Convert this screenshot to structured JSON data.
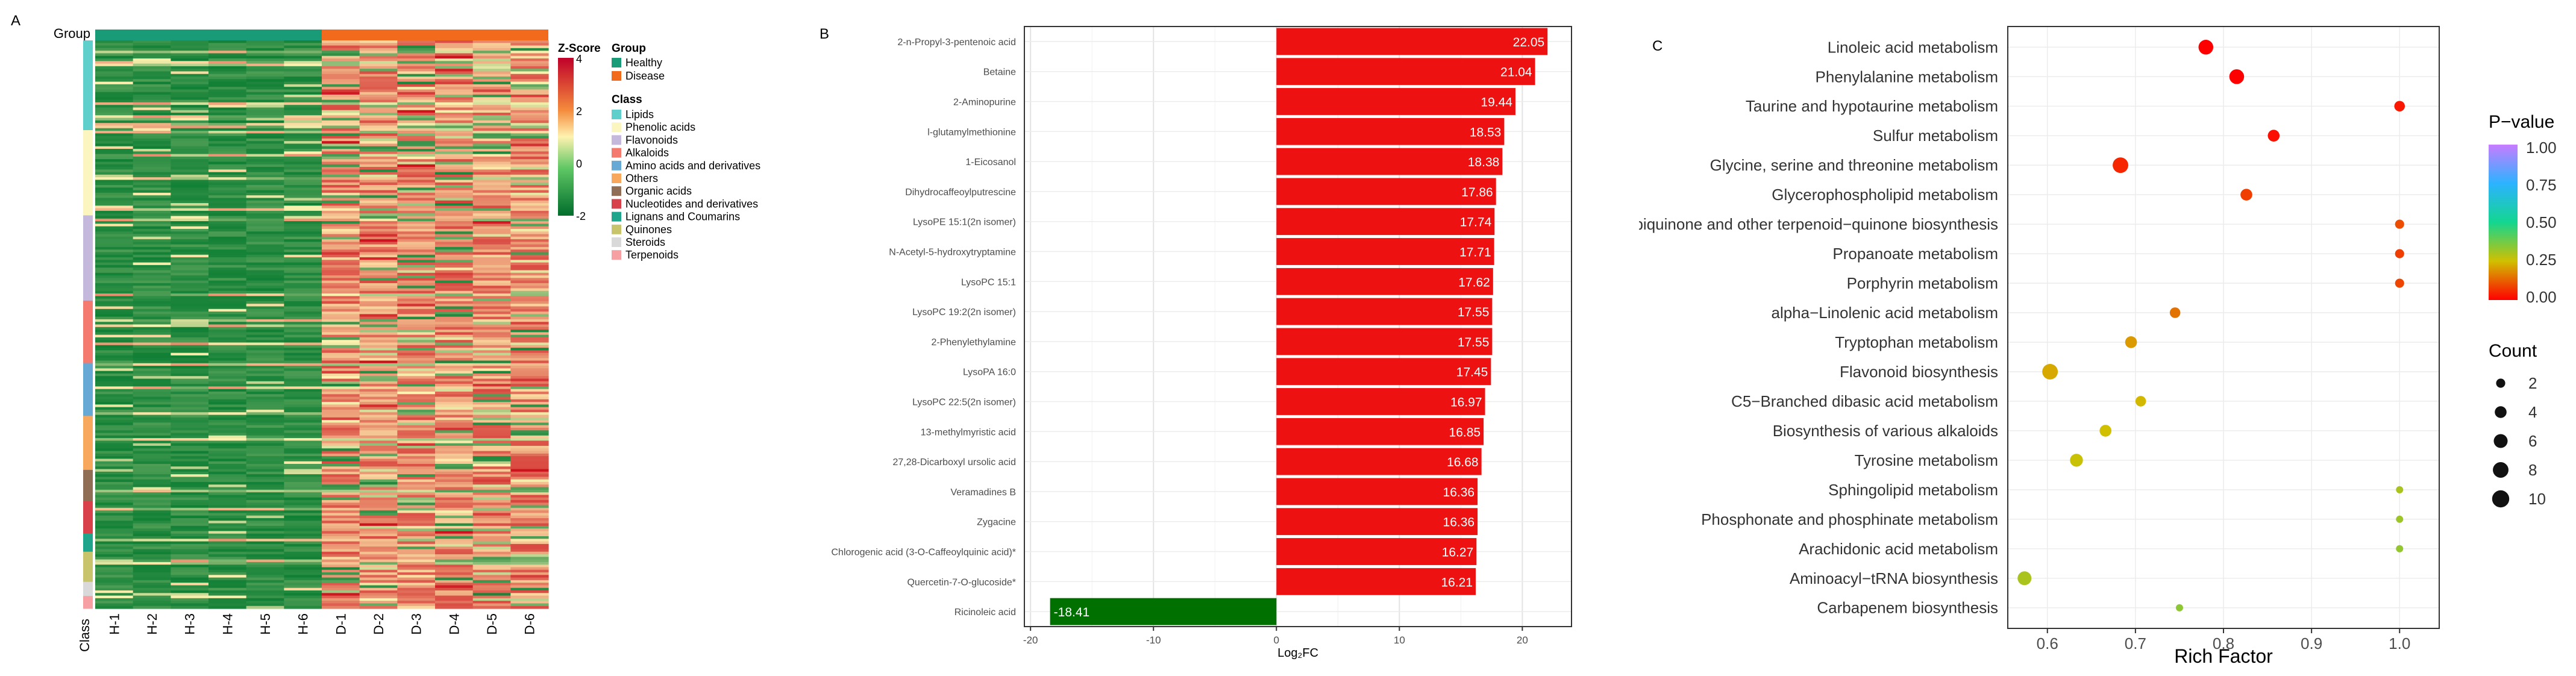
{
  "panel_labels": {
    "a": "A",
    "b": "B",
    "c": "C"
  },
  "colors": {
    "healthy": "#1a9b78",
    "disease": "#f26a1b",
    "bar_positive": "#ee1111",
    "bar_negative": "#007000",
    "heat_low": "#1aa34a",
    "heat_mid": "#fff2b0",
    "heat_high": "#d7191c"
  },
  "heatmap": {
    "group_row_label": "Group",
    "class_col_label": "Class",
    "columns": [
      "H-1",
      "H-2",
      "H-3",
      "H-4",
      "H-5",
      "H-6",
      "D-1",
      "D-2",
      "D-3",
      "D-4",
      "D-5",
      "D-6"
    ],
    "zscore": {
      "title": "Z-Score",
      "ticks": [
        "4",
        "2",
        "0",
        "-2"
      ]
    },
    "group_legend": {
      "title": "Group",
      "items": [
        {
          "label": "Healthy",
          "color": "#1a9b78"
        },
        {
          "label": "Disease",
          "color": "#f26a1b"
        }
      ]
    },
    "class_legend": {
      "title": "Class",
      "items": [
        {
          "label": "Lipids",
          "color": "#5fcfcb"
        },
        {
          "label": "Phenolic acids",
          "color": "#fbf6c0"
        },
        {
          "label": "Flavonoids",
          "color": "#c4b8dc"
        },
        {
          "label": "Alkaloids",
          "color": "#f47a70"
        },
        {
          "label": "Amino acids and derivatives",
          "color": "#65a9d4"
        },
        {
          "label": "Others",
          "color": "#f7a85c"
        },
        {
          "label": "Organic acids",
          "color": "#8f6e55"
        },
        {
          "label": "Nucleotides and derivatives",
          "color": "#d8404a"
        },
        {
          "label": "Lignans and Coumarins",
          "color": "#1fa58c"
        },
        {
          "label": "Quinones",
          "color": "#c8c46c"
        },
        {
          "label": "Steroids",
          "color": "#d9d9d9"
        },
        {
          "label": "Terpenoids",
          "color": "#f7a0a3"
        }
      ]
    }
  },
  "chart_data": [
    {
      "type": "heatmap",
      "title": "",
      "columns": [
        "H-1",
        "H-2",
        "H-3",
        "H-4",
        "H-5",
        "H-6",
        "D-1",
        "D-2",
        "D-3",
        "D-4",
        "D-5",
        "D-6"
      ],
      "column_groups": [
        "Healthy",
        "Healthy",
        "Healthy",
        "Healthy",
        "Healthy",
        "Healthy",
        "Disease",
        "Disease",
        "Disease",
        "Disease",
        "Disease",
        "Disease"
      ],
      "color_scale": {
        "label": "Z-Score",
        "range": [
          -2,
          4
        ]
      },
      "row_classes": [
        {
          "class": "Lipids",
          "fraction": 0.158
        },
        {
          "class": "Phenolic acids",
          "fraction": 0.15
        },
        {
          "class": "Flavonoids",
          "fraction": 0.15
        },
        {
          "class": "Alkaloids",
          "fraction": 0.11
        },
        {
          "class": "Amino acids and derivatives",
          "fraction": 0.093
        },
        {
          "class": "Others",
          "fraction": 0.095
        },
        {
          "class": "Organic acids",
          "fraction": 0.055
        },
        {
          "class": "Nucleotides and derivatives",
          "fraction": 0.057
        },
        {
          "class": "Lignans and Coumarins",
          "fraction": 0.032
        },
        {
          "class": "Quinones",
          "fraction": 0.053
        },
        {
          "class": "Steroids",
          "fraction": 0.025
        },
        {
          "class": "Terpenoids",
          "fraction": 0.022
        }
      ]
    },
    {
      "type": "bar",
      "orientation": "horizontal",
      "title": "",
      "xlabel": "Log₂FC",
      "ylabel": "",
      "xlim": [
        -20.5,
        24
      ],
      "xticks": [
        -20,
        -10,
        0,
        10,
        20
      ],
      "grid": true,
      "categories": [
        "2-n-Propyl-3-pentenoic acid",
        "Betaine",
        "2-Aminopurine",
        "l-glutamylmethionine",
        "1-Eicosanol",
        "Dihydrocaffeoylputrescine",
        "LysoPE 15:1(2n isomer)",
        "N-Acetyl-5-hydroxytryptamine",
        "LysoPC 15:1",
        "LysoPC 19:2(2n isomer)",
        "2-Phenylethylamine",
        "LysoPA 16:0",
        "LysoPC 22:5(2n isomer)",
        "13-methylmyristic acid",
        "27,28-Dicarboxyl ursolic acid",
        "Veramadines B",
        "Zygacine",
        "Chlorogenic acid (3-O-Caffeoylquinic acid)*",
        "Quercetin-7-O-glucoside*",
        "Ricinoleic acid"
      ],
      "values": [
        22.05,
        21.04,
        19.44,
        18.53,
        18.38,
        17.86,
        17.74,
        17.71,
        17.62,
        17.55,
        17.55,
        17.45,
        16.97,
        16.85,
        16.68,
        16.36,
        16.36,
        16.27,
        16.21,
        -18.41
      ],
      "value_labels": [
        "22.05",
        "21.04",
        "19.44",
        "18.53",
        "18.38",
        "17.86",
        "17.74",
        "17.71",
        "17.62",
        "17.55",
        "17.55",
        "17.45",
        "16.97",
        "16.85",
        "16.68",
        "16.36",
        "16.36",
        "16.27",
        "16.21",
        "-18.41"
      ],
      "tick_labels": [
        "-20",
        "-10",
        "0",
        "10",
        "20"
      ]
    },
    {
      "type": "scatter",
      "title": "",
      "xlabel": "Rich Factor",
      "ylabel": "",
      "xlim": [
        0.555,
        1.045
      ],
      "xticks": [
        0.6,
        0.7,
        0.8,
        0.9,
        1.0
      ],
      "tick_labels": [
        "0.6",
        "0.7",
        "0.8",
        "0.9",
        "1.0"
      ],
      "grid": true,
      "pathways": [
        "Linoleic acid metabolism",
        "Phenylalanine metabolism",
        "Taurine and hypotaurine metabolism",
        "Sulfur metabolism",
        "Glycine, serine and threonine metabolism",
        "Glycerophospholipid metabolism",
        "Ubiquinone and other terpenoid−quinone biosynthesis",
        "Propanoate metabolism",
        "Porphyrin metabolism",
        "alpha−Linolenic acid metabolism",
        "Tryptophan metabolism",
        "Flavonoid biosynthesis",
        "C5−Branched dibasic acid metabolism",
        "Biosynthesis of various alkaloids",
        "Tyrosine metabolism",
        "Sphingolipid metabolism",
        "Phosphonate and phosphinate metabolism",
        "Arachidonic acid metabolism",
        "Aminoacyl−tRNA biosynthesis",
        "Carbapenem biosynthesis"
      ],
      "rich_factor": [
        0.78,
        0.815,
        1.0,
        0.857,
        0.683,
        0.826,
        1.0,
        1.0,
        1.0,
        0.745,
        0.695,
        0.603,
        0.706,
        0.666,
        0.633,
        1.0,
        1.0,
        1.0,
        0.574,
        0.75
      ],
      "count": [
        7,
        7,
        3,
        4,
        8,
        4,
        2,
        2,
        2,
        3,
        4,
        8,
        3,
        4,
        5,
        1,
        1,
        1,
        6,
        1
      ],
      "p_value": [
        0.0,
        0.0,
        0.03,
        0.02,
        0.05,
        0.08,
        0.1,
        0.08,
        0.09,
        0.15,
        0.2,
        0.22,
        0.24,
        0.25,
        0.26,
        0.3,
        0.32,
        0.33,
        0.3,
        0.34
      ],
      "color_legend": {
        "title": "P−value",
        "ticks": [
          "1.00",
          "0.75",
          "0.50",
          "0.25",
          "0.00"
        ]
      },
      "size_legend": {
        "title": "Count",
        "labels": [
          "2",
          "4",
          "6",
          "8",
          "10"
        ]
      }
    }
  ]
}
